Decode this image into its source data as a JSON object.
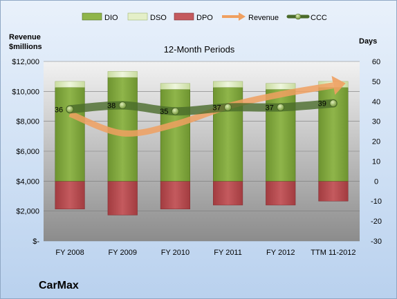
{
  "chart_data": {
    "type": "bar",
    "title": "12-Month Periods",
    "company": "CarMax",
    "left_axis_label": [
      "Revenue",
      "$millions"
    ],
    "right_axis_label": "Days",
    "categories": [
      "FY 2008",
      "FY 2009",
      "FY 2010",
      "FY 2011",
      "FY 2012",
      "TTM 11-2012"
    ],
    "left_ticks": [
      "$-",
      "$2,000",
      "$4,000",
      "$6,000",
      "$8,000",
      "$10,000",
      "$12,000"
    ],
    "left_range": [
      0,
      12000
    ],
    "right_ticks": [
      "-30",
      "-20",
      "-10",
      "0",
      "10",
      "20",
      "30",
      "40",
      "50",
      "60"
    ],
    "right_range": [
      -30,
      60
    ],
    "legend": [
      "DIO",
      "DSO",
      "DPO",
      "Revenue",
      "CCC"
    ],
    "legend_position": "top",
    "series": [
      {
        "name": "DIO",
        "axis": "right",
        "values": [
          47,
          52,
          46,
          47,
          46,
          47
        ]
      },
      {
        "name": "DSO",
        "axis": "right",
        "values": [
          3,
          3,
          3,
          3,
          3,
          3
        ]
      },
      {
        "name": "DPO",
        "axis": "right",
        "values": [
          -14,
          -17,
          -14,
          -12,
          -12,
          -10
        ]
      },
      {
        "name": "Revenue",
        "axis": "left",
        "values": [
          8500,
          7200,
          7800,
          9000,
          9800,
          10400
        ]
      },
      {
        "name": "CCC",
        "axis": "right",
        "values": [
          36,
          38,
          35,
          37,
          37,
          39
        ]
      }
    ],
    "ccc_labels": [
      "36",
      "38",
      "35",
      "37",
      "37",
      "39"
    ],
    "colors": {
      "DIO": "#7ea33a",
      "DSO": "#d6e7b2",
      "DPO": "#b8484d",
      "Revenue": "#f0a060",
      "CCC": "#4a6b2a",
      "plot_bg": "#a8a8a8"
    },
    "grid": true
  }
}
